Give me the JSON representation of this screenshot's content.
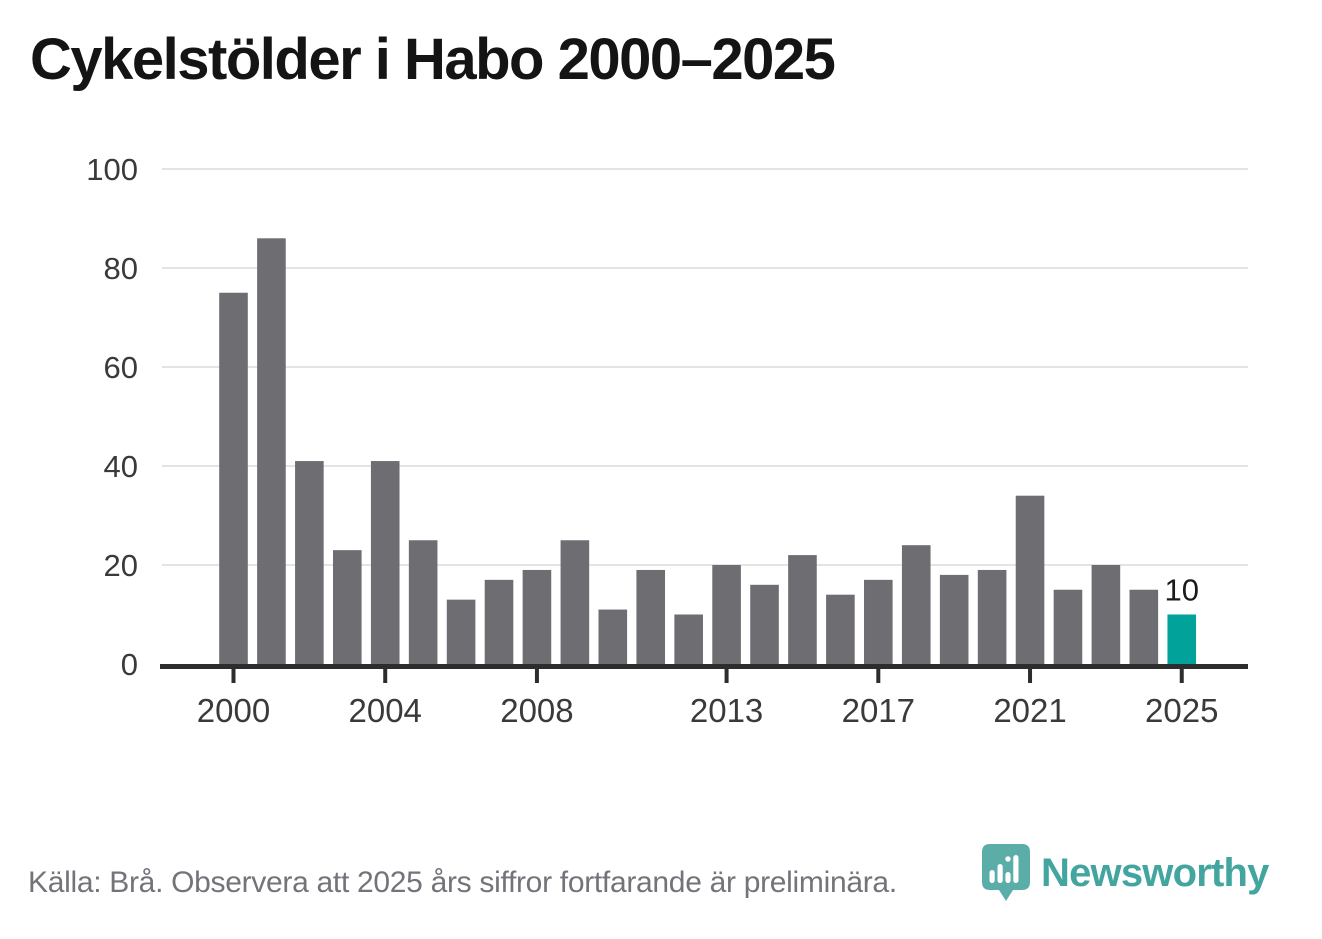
{
  "title": "Cykelstölder i Habo 2000–2025",
  "chart_data": {
    "type": "bar",
    "title": "Cykelstölder i Habo 2000–2025",
    "categories": [
      "2000",
      "2001",
      "2002",
      "2003",
      "2004",
      "2005",
      "2006",
      "2007",
      "2008",
      "2009",
      "2010",
      "2011",
      "2012",
      "2013",
      "2014",
      "2015",
      "2016",
      "2017",
      "2018",
      "2019",
      "2020",
      "2021",
      "2022",
      "2023",
      "2024",
      "2025"
    ],
    "values": [
      75,
      86,
      41,
      23,
      41,
      25,
      13,
      17,
      19,
      25,
      11,
      19,
      10,
      20,
      16,
      22,
      14,
      17,
      24,
      18,
      19,
      34,
      15,
      20,
      15,
      10
    ],
    "xlabel": "",
    "ylabel": "",
    "ylim": [
      0,
      100
    ],
    "yticks": [
      0,
      20,
      40,
      60,
      80,
      100
    ],
    "xtick_labels": [
      "2000",
      "2004",
      "2008",
      "2013",
      "2017",
      "2021",
      "2025"
    ],
    "grid": "horizontal",
    "legend": "none",
    "highlight_year": "2025",
    "highlight_index": 25,
    "value_label": {
      "index": 25,
      "text": "10"
    },
    "colors": {
      "bar": "#6d6d72",
      "highlight": "#00a29a",
      "grid": "#e4e4e4",
      "axis": "#2d2d2d",
      "tick_label": "#3a3a3a",
      "annotation": "#1a1a1a"
    }
  },
  "footer": {
    "text": "Källa: Brå. Observera att 2025 års siffror fortfarande är preliminära."
  },
  "logo": {
    "wordmark": "Newsworthy",
    "icon": "newsworthy-pin-barchart-icon",
    "color": "#2e9c96"
  }
}
